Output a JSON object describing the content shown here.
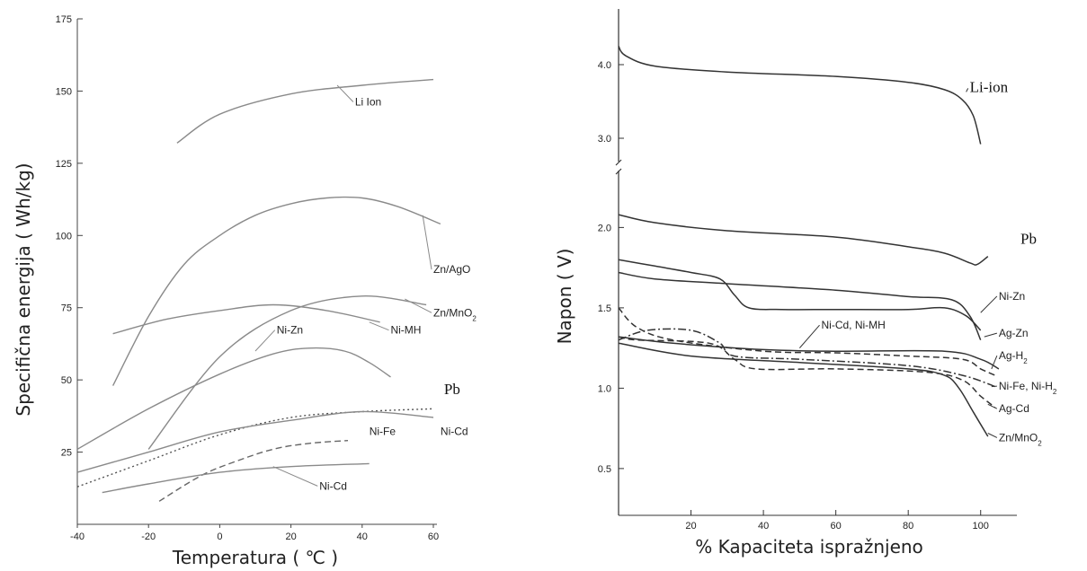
{
  "chart_data": [
    {
      "type": "line",
      "xlabel": "Temperatura ( ℃ )",
      "ylabel": "Specifična energija ( Wh/kg)",
      "xlim": [
        -40,
        60
      ],
      "ylim": [
        0,
        175
      ],
      "xticks": [
        -40,
        -20,
        0,
        20,
        40,
        60
      ],
      "yticks": [
        25,
        50,
        75,
        100,
        125,
        150,
        175
      ],
      "color": "#8a8a8a",
      "series": [
        {
          "name": "Li Ion",
          "style": "solid",
          "x": [
            -12,
            0,
            20,
            40,
            60
          ],
          "y": [
            132,
            142,
            149,
            152,
            154
          ]
        },
        {
          "name": "Zn/AgO",
          "style": "solid",
          "x": [
            -30,
            -20,
            -10,
            0,
            10,
            20,
            30,
            40,
            50,
            62
          ],
          "y": [
            48,
            72,
            90,
            100,
            107,
            111,
            113,
            113,
            110,
            104
          ]
        },
        {
          "name": "Zn/MnO₂",
          "style": "solid",
          "x": [
            -20,
            0,
            20,
            40,
            58
          ],
          "y": [
            26,
            58,
            74,
            79,
            76
          ]
        },
        {
          "name": "Ni-MH",
          "style": "solid",
          "x": [
            -30,
            -15,
            0,
            15,
            30,
            45
          ],
          "y": [
            66,
            71,
            74,
            76,
            74,
            70
          ]
        },
        {
          "name": "Ni-Zn",
          "style": "solid",
          "x": [
            -40,
            -20,
            0,
            15,
            25,
            35,
            42,
            48
          ],
          "y": [
            26,
            40,
            52,
            59,
            61,
            60,
            56,
            51
          ]
        },
        {
          "name": "Pb",
          "style": "dotted",
          "x": [
            -40,
            -20,
            0,
            20,
            40,
            60
          ],
          "y": [
            13,
            22,
            31,
            37,
            39,
            40
          ]
        },
        {
          "name": "Ni-Cd",
          "style": "solid",
          "x": [
            -40,
            -20,
            0,
            20,
            40,
            60
          ],
          "y": [
            18,
            25,
            32,
            36,
            39,
            37
          ]
        },
        {
          "name": "Ni-Fe",
          "style": "dashed",
          "x": [
            -17,
            -5,
            5,
            15,
            25,
            36
          ],
          "y": [
            8,
            17,
            22,
            26,
            28,
            29
          ]
        },
        {
          "name": "Ni-Cd",
          "style": "solid",
          "x": [
            -33,
            -20,
            0,
            20,
            42
          ],
          "y": [
            11,
            14,
            18,
            20,
            21
          ]
        }
      ],
      "labels": [
        {
          "text": "Li Ion",
          "x": 38,
          "y": 145,
          "lx": 33,
          "ly": 152,
          "serif": false
        },
        {
          "text": "Zn/AgO",
          "x": 60,
          "y": 87,
          "lx": 57,
          "ly": 107,
          "serif": false
        },
        {
          "text": "Zn/MnO",
          "sub": "2",
          "x": 60,
          "y": 72,
          "lx": 52,
          "ly": 78,
          "serif": false
        },
        {
          "text": "Ni-MH",
          "x": 48,
          "y": 66,
          "lx": 42,
          "ly": 70,
          "serif": false
        },
        {
          "text": "Ni-Zn",
          "x": 16,
          "y": 66,
          "lx": 10,
          "ly": 60,
          "serif": false
        },
        {
          "text": "Pb",
          "x": 63,
          "y": 45,
          "serif": true
        },
        {
          "text": "Ni-Cd",
          "x": 62,
          "y": 31,
          "serif": false
        },
        {
          "text": "Ni-Fe",
          "x": 42,
          "y": 31,
          "serif": false
        },
        {
          "text": "Ni-Cd",
          "x": 28,
          "y": 12,
          "lx": 15,
          "ly": 20,
          "serif": false
        }
      ]
    },
    {
      "type": "line",
      "xlabel": "% Kapaciteta ispražnjeno",
      "ylabel": "Napon ( V)",
      "xlim": [
        0,
        110
      ],
      "xticks": [
        20,
        40,
        60,
        80,
        100
      ],
      "yticks_lower": [
        0.5,
        1.0,
        1.5,
        2.0
      ],
      "yticks_upper": [
        3.0,
        4.0
      ],
      "axis_break": true,
      "color": "#333333",
      "series": [
        {
          "name": "Li-ion",
          "style": "solid",
          "x": [
            0,
            2,
            10,
            30,
            60,
            80,
            90,
            95,
            98,
            100
          ],
          "y": [
            4.25,
            4.12,
            3.98,
            3.9,
            3.84,
            3.76,
            3.66,
            3.52,
            3.3,
            2.92
          ]
        },
        {
          "name": "Pb",
          "style": "solid",
          "x": [
            0,
            10,
            30,
            60,
            80,
            90,
            97,
            99,
            102
          ],
          "y": [
            2.08,
            2.03,
            1.98,
            1.94,
            1.88,
            1.84,
            1.78,
            1.77,
            1.82
          ]
        },
        {
          "name": "Ni-Zn",
          "style": "solid",
          "x": [
            0,
            10,
            20,
            28,
            32,
            36,
            45,
            60,
            80,
            90,
            96,
            100
          ],
          "y": [
            1.8,
            1.76,
            1.72,
            1.68,
            1.58,
            1.5,
            1.49,
            1.49,
            1.49,
            1.5,
            1.45,
            1.36
          ]
        },
        {
          "name": "Ag-Zn",
          "style": "solid",
          "x": [
            0,
            10,
            30,
            60,
            80,
            92,
            97,
            100
          ],
          "y": [
            1.72,
            1.68,
            1.65,
            1.61,
            1.57,
            1.55,
            1.45,
            1.3
          ]
        },
        {
          "name": "Ag-H₂",
          "style": "solid",
          "x": [
            0,
            15,
            40,
            60,
            90,
            100,
            105
          ],
          "y": [
            1.32,
            1.28,
            1.24,
            1.23,
            1.23,
            1.18,
            1.12
          ]
        },
        {
          "name": "Ni-Cd, Ni-MH",
          "style": "dashed",
          "x": [
            0,
            5,
            15,
            40,
            60,
            80,
            95,
            100,
            104
          ],
          "y": [
            1.5,
            1.38,
            1.3,
            1.23,
            1.22,
            1.2,
            1.18,
            1.12,
            1.08
          ]
        },
        {
          "name": "Ni-Fe, Ni-H₂",
          "style": "dashdot",
          "x": [
            0,
            8,
            20,
            28,
            32,
            50,
            80,
            95,
            104
          ],
          "y": [
            1.3,
            1.36,
            1.36,
            1.28,
            1.2,
            1.18,
            1.14,
            1.08,
            1.01
          ]
        },
        {
          "name": "Ag-Cd",
          "style": "dashed",
          "x": [
            0,
            5,
            25,
            32,
            38,
            60,
            85,
            95,
            100,
            104
          ],
          "y": [
            1.32,
            1.3,
            1.28,
            1.18,
            1.12,
            1.12,
            1.1,
            1.05,
            0.95,
            0.88
          ]
        },
        {
          "name": "Zn/MnO₂",
          "style": "solid",
          "x": [
            0,
            20,
            50,
            80,
            90,
            94,
            98,
            102
          ],
          "y": [
            1.28,
            1.2,
            1.16,
            1.12,
            1.08,
            1.0,
            0.85,
            0.7
          ]
        }
      ],
      "labels": [
        {
          "text": "Li-ion",
          "x": 97,
          "y": 3.63,
          "lx": 96,
          "ly": 3.63,
          "serif": true
        },
        {
          "text": "Pb",
          "x": 111,
          "y": 1.9,
          "serif": true
        },
        {
          "text": "Ni-Zn",
          "x": 105,
          "y": 1.55,
          "lx": 100,
          "ly": 1.47,
          "serif": false
        },
        {
          "text": "Ag-Zn",
          "x": 105,
          "y": 1.32,
          "lx": 101,
          "ly": 1.32,
          "serif": false
        },
        {
          "text": "Ag-H",
          "sub": "2",
          "x": 105,
          "y": 1.18,
          "lx": 103,
          "ly": 1.12,
          "serif": false
        },
        {
          "text": "Ni-Cd, Ni-MH",
          "x": 56,
          "y": 1.37,
          "lx": 50,
          "ly": 1.25,
          "serif": false
        },
        {
          "text": "Ni-Fe, Ni-H",
          "sub": "2",
          "x": 105,
          "y": 0.99,
          "lx": 103,
          "ly": 1.01,
          "serif": false
        },
        {
          "text": "Ag-Cd",
          "x": 105,
          "y": 0.85,
          "lx": 102,
          "ly": 0.9,
          "serif": false
        },
        {
          "text": "Zn/MnO",
          "sub": "2",
          "x": 105,
          "y": 0.67,
          "lx": 102,
          "ly": 0.72,
          "serif": false
        }
      ]
    }
  ]
}
